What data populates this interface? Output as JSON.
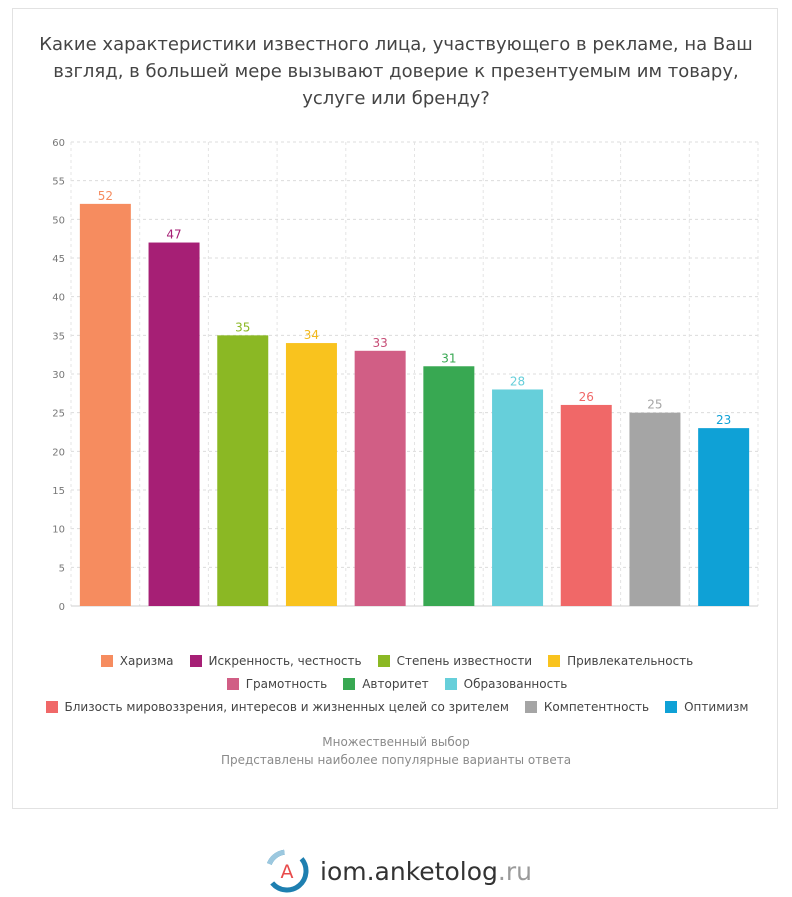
{
  "title": "Какие характеристики известного лица, участвующего в рекламе, на Ваш взгляд, в большей мере вызывают доверие к презентуемым им товару, услуге или бренду?",
  "chart_data": {
    "type": "bar",
    "categories": [
      "Харизма",
      "Искренность, честность",
      "Степень известности",
      "Привлекательность",
      "Грамотность",
      "Авторитет",
      "Образованность",
      "Близость мировоззрения, интересов и жизненных целей со зрителем",
      "Компетентность",
      "Оптимизм"
    ],
    "values": [
      52,
      47,
      35,
      34,
      33,
      31,
      28,
      26,
      25,
      23
    ],
    "colors": [
      "#f68c5f",
      "#a61f75",
      "#8bb824",
      "#f9c31e",
      "#d15e85",
      "#38a852",
      "#66cfda",
      "#f06868",
      "#a5a5a5",
      "#0fa1d6"
    ],
    "label_colors": [
      "#f68c5f",
      "#a61f75",
      "#8bb824",
      "#f2b91c",
      "#c74d76",
      "#38a852",
      "#66cfda",
      "#f06868",
      "#a5a5a5",
      "#0fa1d6"
    ],
    "ylim": [
      0,
      60
    ],
    "yticks": [
      "0",
      "5",
      "10",
      "15",
      "20",
      "25",
      "30",
      "35",
      "40",
      "45",
      "50",
      "55",
      "60"
    ],
    "grid": true,
    "legend_position": "bottom"
  },
  "notes": {
    "line1": "Множественный выбор",
    "line2": "Представлены наиболее популярные варианты ответа"
  },
  "logo": {
    "letter": "A",
    "name": "iom.anketolog",
    "tld": ".ru"
  }
}
